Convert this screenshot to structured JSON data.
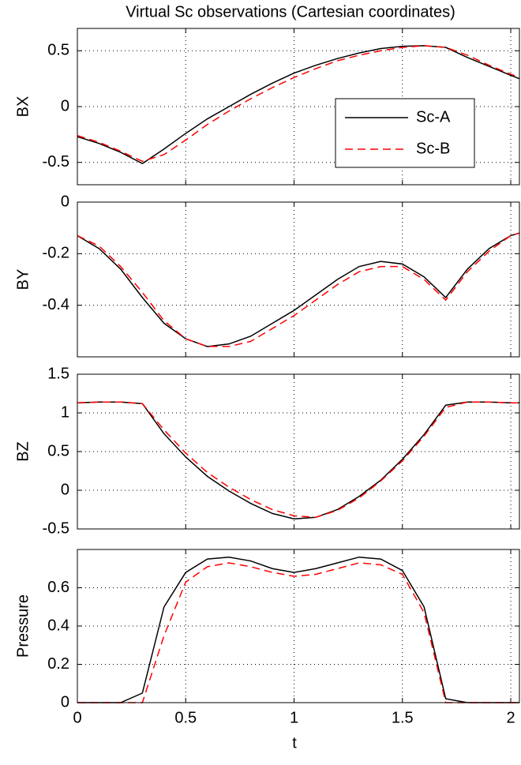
{
  "chart_data": [
    {
      "type": "line",
      "title": "Virtual Sc observations (Cartesian coordinates)",
      "ylabel": "BX",
      "x": [
        0,
        0.1,
        0.2,
        0.3,
        0.4,
        0.5,
        0.6,
        0.7,
        0.8,
        0.9,
        1.0,
        1.1,
        1.2,
        1.3,
        1.4,
        1.5,
        1.6,
        1.7,
        1.8,
        1.9,
        2.0,
        2.04
      ],
      "series": [
        {
          "name": "Sc-A",
          "color": "#000000",
          "dash": false,
          "values": [
            -0.27,
            -0.33,
            -0.41,
            -0.51,
            -0.38,
            -0.24,
            -0.11,
            0.0,
            0.11,
            0.21,
            0.3,
            0.37,
            0.43,
            0.48,
            0.52,
            0.54,
            0.545,
            0.53,
            0.44,
            0.36,
            0.28,
            0.25
          ]
        },
        {
          "name": "Sc-B",
          "color": "#ff0000",
          "dash": true,
          "values": [
            -0.26,
            -0.32,
            -0.4,
            -0.49,
            -0.43,
            -0.3,
            -0.16,
            -0.04,
            0.07,
            0.17,
            0.26,
            0.34,
            0.41,
            0.46,
            0.5,
            0.53,
            0.545,
            0.53,
            0.46,
            0.37,
            0.29,
            0.26
          ]
        }
      ],
      "xlim": [
        0,
        2.04
      ],
      "ylim": [
        -0.7,
        0.7
      ],
      "yticks": [
        -0.5,
        0,
        0.5
      ],
      "grid": true,
      "legend": true
    },
    {
      "type": "line",
      "ylabel": "BY",
      "x": [
        0,
        0.1,
        0.2,
        0.3,
        0.4,
        0.5,
        0.6,
        0.7,
        0.8,
        0.9,
        1.0,
        1.1,
        1.2,
        1.3,
        1.4,
        1.5,
        1.6,
        1.7,
        1.8,
        1.9,
        2.0,
        2.04
      ],
      "series": [
        {
          "name": "Sc-A",
          "color": "#000000",
          "dash": false,
          "values": [
            -0.13,
            -0.18,
            -0.26,
            -0.37,
            -0.47,
            -0.53,
            -0.56,
            -0.55,
            -0.52,
            -0.47,
            -0.42,
            -0.36,
            -0.3,
            -0.25,
            -0.23,
            -0.24,
            -0.29,
            -0.37,
            -0.26,
            -0.18,
            -0.13,
            -0.12
          ]
        },
        {
          "name": "Sc-B",
          "color": "#ff0000",
          "dash": true,
          "values": [
            -0.13,
            -0.17,
            -0.25,
            -0.35,
            -0.46,
            -0.53,
            -0.56,
            -0.56,
            -0.54,
            -0.49,
            -0.44,
            -0.38,
            -0.32,
            -0.27,
            -0.25,
            -0.25,
            -0.3,
            -0.38,
            -0.27,
            -0.19,
            -0.13,
            -0.12
          ]
        }
      ],
      "xlim": [
        0,
        2.04
      ],
      "ylim": [
        -0.6,
        0
      ],
      "yticks": [
        -0.4,
        -0.2,
        0
      ],
      "grid": true
    },
    {
      "type": "line",
      "ylabel": "BZ",
      "x": [
        0,
        0.1,
        0.2,
        0.3,
        0.4,
        0.5,
        0.6,
        0.7,
        0.8,
        0.9,
        1.0,
        1.1,
        1.2,
        1.3,
        1.4,
        1.5,
        1.6,
        1.7,
        1.8,
        1.9,
        2.0,
        2.04
      ],
      "series": [
        {
          "name": "Sc-A",
          "color": "#000000",
          "dash": false,
          "values": [
            1.13,
            1.14,
            1.14,
            1.12,
            0.73,
            0.43,
            0.18,
            -0.01,
            -0.17,
            -0.3,
            -0.37,
            -0.35,
            -0.25,
            -0.08,
            0.13,
            0.4,
            0.72,
            1.1,
            1.14,
            1.14,
            1.13,
            1.13
          ]
        },
        {
          "name": "Sc-B",
          "color": "#ff0000",
          "dash": true,
          "values": [
            1.13,
            1.14,
            1.14,
            1.12,
            0.78,
            0.48,
            0.23,
            0.04,
            -0.12,
            -0.25,
            -0.33,
            -0.35,
            -0.26,
            -0.1,
            0.12,
            0.38,
            0.7,
            1.07,
            1.14,
            1.14,
            1.13,
            1.13
          ]
        }
      ],
      "xlim": [
        0,
        2.04
      ],
      "ylim": [
        -0.5,
        1.5
      ],
      "yticks": [
        -0.5,
        0,
        0.5,
        1,
        1.5
      ],
      "grid": true
    },
    {
      "type": "line",
      "ylabel": "Pressure",
      "xlabel": "t",
      "x": [
        0,
        0.1,
        0.2,
        0.3,
        0.4,
        0.5,
        0.6,
        0.7,
        0.8,
        0.9,
        1.0,
        1.1,
        1.2,
        1.3,
        1.4,
        1.5,
        1.6,
        1.7,
        1.8,
        1.9,
        2.0,
        2.04
      ],
      "series": [
        {
          "name": "Sc-A",
          "color": "#000000",
          "dash": false,
          "values": [
            0,
            0,
            0,
            0.05,
            0.5,
            0.68,
            0.75,
            0.76,
            0.74,
            0.7,
            0.68,
            0.7,
            0.73,
            0.76,
            0.75,
            0.69,
            0.5,
            0.02,
            0,
            0,
            0,
            0
          ]
        },
        {
          "name": "Sc-B",
          "color": "#ff0000",
          "dash": true,
          "values": [
            0,
            0,
            0,
            0,
            0.35,
            0.63,
            0.71,
            0.73,
            0.71,
            0.68,
            0.66,
            0.67,
            0.7,
            0.73,
            0.72,
            0.67,
            0.47,
            0,
            0,
            0,
            0,
            0
          ]
        }
      ],
      "xlim": [
        0,
        2.04
      ],
      "ylim": [
        0,
        0.8
      ],
      "yticks": [
        0,
        0.2,
        0.4,
        0.6
      ],
      "xticks": [
        0,
        0.5,
        1,
        1.5,
        2
      ],
      "grid": true
    }
  ]
}
